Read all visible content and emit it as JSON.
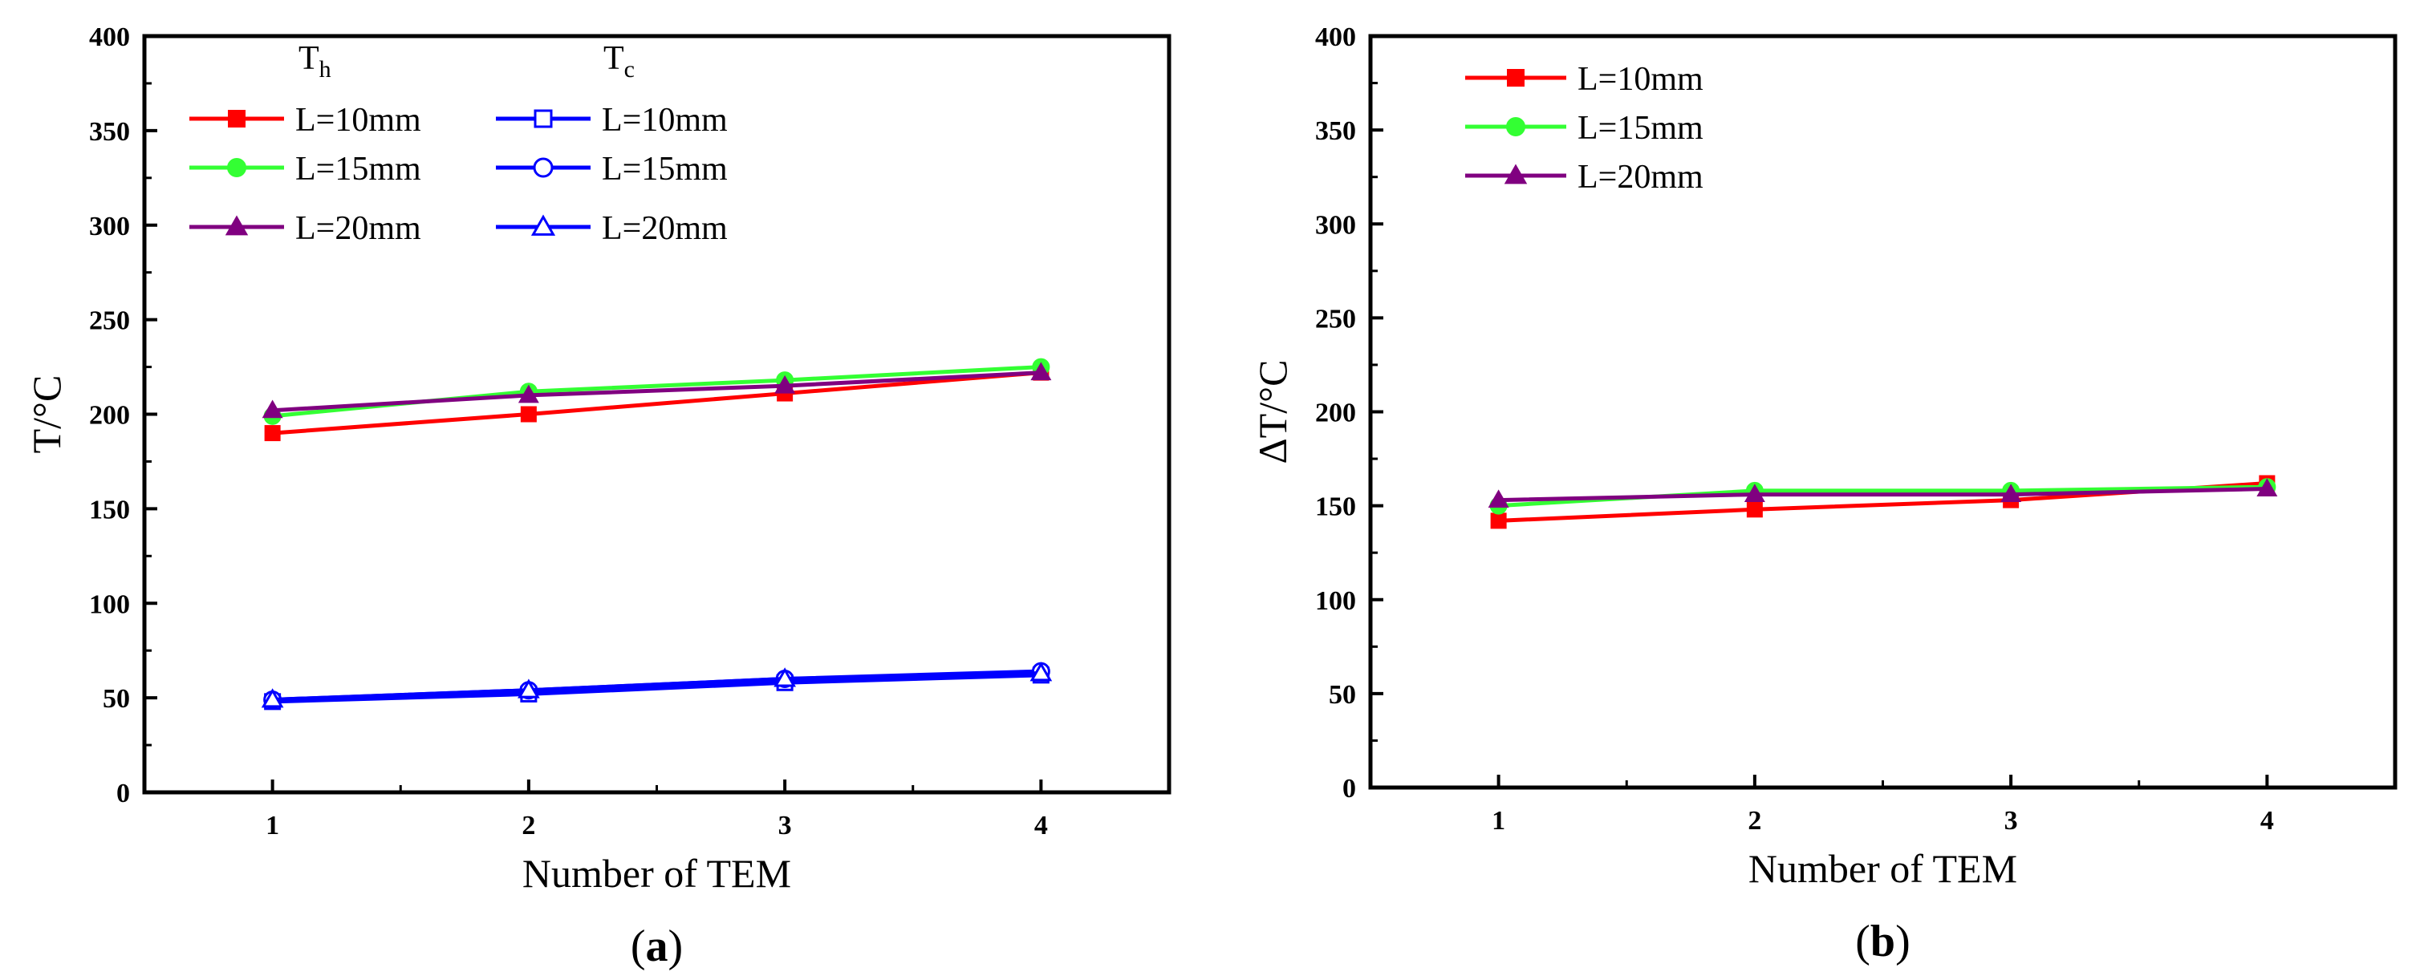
{
  "chart_data": [
    {
      "type": "line",
      "panel_label": "a",
      "xlabel": "Number of TEM",
      "ylabel": "T/°C",
      "x": [
        1,
        2,
        3,
        4
      ],
      "xlim": [
        0.5,
        4.5
      ],
      "ylim": [
        0,
        400
      ],
      "yticks": [
        0,
        50,
        100,
        150,
        200,
        250,
        300,
        350,
        400
      ],
      "legend_headers": [
        "T",
        "h",
        "T",
        "c"
      ],
      "series": [
        {
          "name": "L=10mm",
          "group": "Th",
          "values": [
            190,
            200,
            211,
            222
          ],
          "color": "#ff0000",
          "marker": "square",
          "filled": true
        },
        {
          "name": "L=15mm",
          "group": "Th",
          "values": [
            199,
            212,
            218,
            225
          ],
          "color": "#33ff33",
          "marker": "circle",
          "filled": true
        },
        {
          "name": "L=20mm",
          "group": "Th",
          "values": [
            202,
            210,
            215,
            222
          ],
          "color": "#800080",
          "marker": "triangle",
          "filled": true
        },
        {
          "name": "L=10mm",
          "group": "Tc",
          "values": [
            48,
            52,
            58,
            62
          ],
          "color": "#0000ff",
          "marker": "square",
          "filled": false
        },
        {
          "name": "L=15mm",
          "group": "Tc",
          "values": [
            49,
            54,
            60,
            64
          ],
          "color": "#0000ff",
          "marker": "circle",
          "filled": false
        },
        {
          "name": "L=20mm",
          "group": "Tc",
          "values": [
            49,
            54,
            60,
            63
          ],
          "color": "#0000ff",
          "marker": "triangle",
          "filled": false
        }
      ]
    },
    {
      "type": "line",
      "panel_label": "b",
      "xlabel": "Number of TEM",
      "ylabel": "ΔT/°C",
      "x": [
        1,
        2,
        3,
        4
      ],
      "xlim": [
        0.5,
        4.5
      ],
      "ylim": [
        0,
        400
      ],
      "yticks": [
        0,
        50,
        100,
        150,
        200,
        250,
        300,
        350,
        400
      ],
      "series": [
        {
          "name": "L=10mm",
          "values": [
            142,
            148,
            153,
            162
          ],
          "color": "#ff0000",
          "marker": "square",
          "filled": true
        },
        {
          "name": "L=15mm",
          "values": [
            150,
            158,
            158,
            160
          ],
          "color": "#33ff33",
          "marker": "circle",
          "filled": true
        },
        {
          "name": "L=20mm",
          "values": [
            153,
            156,
            156,
            159
          ],
          "color": "#800080",
          "marker": "triangle",
          "filled": true
        }
      ]
    }
  ]
}
